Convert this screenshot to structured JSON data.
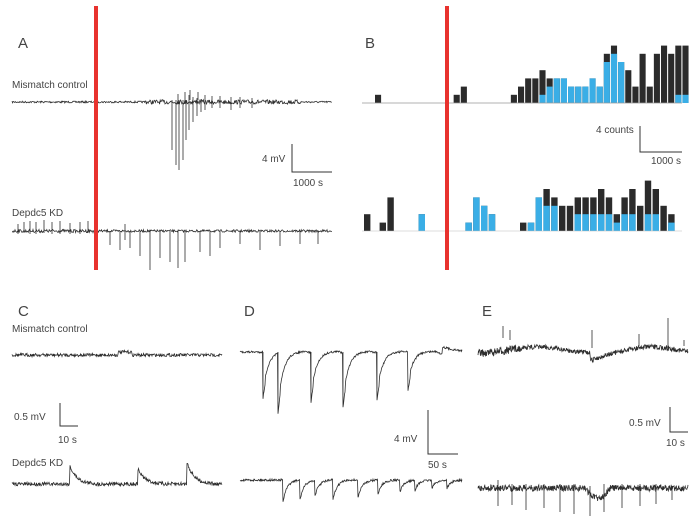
{
  "panels": {
    "a": {
      "letter": "A"
    },
    "b": {
      "letter": "B"
    },
    "c": {
      "letter": "C"
    },
    "d": {
      "letter": "D"
    },
    "e": {
      "letter": "E"
    }
  },
  "traces": {
    "mismatch_control": "Mismatch control",
    "depdc5_kd": "Depdc5 KD"
  },
  "scale_bars": {
    "a_voltage": "4 mV",
    "a_time": "1000 s",
    "b_counts": "4 counts",
    "b_time": "1000 s",
    "c_voltage": "0.5 mV",
    "c_time": "10 s",
    "d_voltage": "4 mV",
    "d_time": "50 s",
    "e_voltage": "0.5 mV",
    "e_time": "10 s"
  },
  "colors": {
    "marker_red": "#e8322e",
    "bar_black": "#2b2b2b",
    "bar_blue": "#3aaee6",
    "trace": "#2e2e2e"
  },
  "chart_data": [
    {
      "type": "bar",
      "name_printed": "",
      "series": [
        {
          "values": [
            1,
            0,
            0,
            0,
            0,
            0,
            0,
            0,
            0,
            0,
            0,
            1,
            2,
            0,
            0,
            0,
            0,
            0,
            0,
            1,
            2,
            3,
            3,
            4,
            3,
            3,
            3,
            2,
            2,
            2,
            3,
            2,
            6,
            7,
            5,
            4,
            2,
            6,
            2,
            6,
            7,
            6,
            7,
            7
          ]
        },
        {
          "values": [
            0,
            0,
            0,
            0,
            0,
            0,
            0,
            0,
            0,
            0,
            0,
            0,
            0,
            0,
            0,
            0,
            0,
            0,
            0,
            0,
            0,
            0,
            0,
            1,
            2,
            3,
            3,
            2,
            2,
            2,
            3,
            2,
            5,
            6,
            5,
            0,
            0,
            0,
            0,
            0,
            0,
            0,
            1,
            1
          ]
        }
      ],
      "ylim": [
        0,
        8
      ]
    },
    {
      "type": "bar",
      "series": [
        {
          "values": [
            2,
            0,
            1,
            4,
            0,
            0,
            0,
            2,
            0,
            0,
            0,
            0,
            0,
            1,
            4,
            3,
            2,
            0,
            0,
            0,
            1,
            1,
            4,
            5,
            4,
            3,
            3,
            4,
            4,
            4,
            5,
            4,
            2,
            4,
            5,
            3,
            6,
            5,
            3,
            2
          ]
        },
        {
          "values": [
            0,
            0,
            0,
            0,
            0,
            0,
            0,
            2,
            0,
            0,
            0,
            0,
            0,
            1,
            4,
            3,
            2,
            0,
            0,
            0,
            0,
            1,
            4,
            3,
            3,
            0,
            0,
            2,
            2,
            2,
            2,
            2,
            1,
            2,
            2,
            0,
            2,
            2,
            0,
            1
          ]
        }
      ],
      "ylim": [
        0,
        8
      ]
    }
  ]
}
